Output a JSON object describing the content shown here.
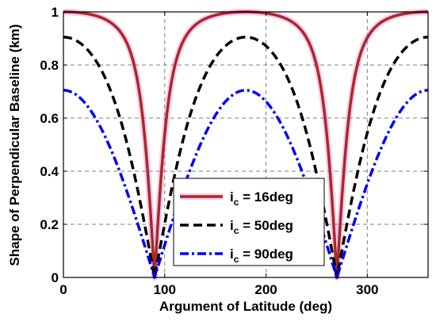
{
  "chart_data": {
    "type": "line",
    "xlabel": "Argument of Latitude (deg)",
    "ylabel": "Shape of Perpendicular Baseline (km)",
    "xlim": [
      0,
      360
    ],
    "ylim": [
      0,
      1
    ],
    "x_ticks": [
      "0",
      "100",
      "200",
      "300"
    ],
    "x_tick_values": [
      0,
      100,
      200,
      300
    ],
    "y_ticks": [
      "0",
      "0.2",
      "0.4",
      "0.6",
      "0.8",
      "1"
    ],
    "y_tick_values": [
      0,
      0.2,
      0.4,
      0.6,
      0.8,
      1.0
    ],
    "grid": true,
    "legend_position": "bottom-center",
    "series": [
      {
        "legend_prefix": "i",
        "legend_subscript": "c",
        "legend_suffix": " = 16deg",
        "style": "solid",
        "color": "#a52a2a",
        "halo_color": "#ff66cc",
        "inclination_deg": 16,
        "peak": 1.0
      },
      {
        "legend_prefix": "i",
        "legend_subscript": "c",
        "legend_suffix": " = 50deg",
        "style": "dashed",
        "color": "#000000",
        "inclination_deg": 50,
        "peak": 0.905
      },
      {
        "legend_prefix": "i",
        "legend_subscript": "c",
        "legend_suffix": " = 90deg",
        "style": "dashdot",
        "color": "#0000ff",
        "inclination_deg": 90,
        "peak": 0.705
      }
    ]
  }
}
